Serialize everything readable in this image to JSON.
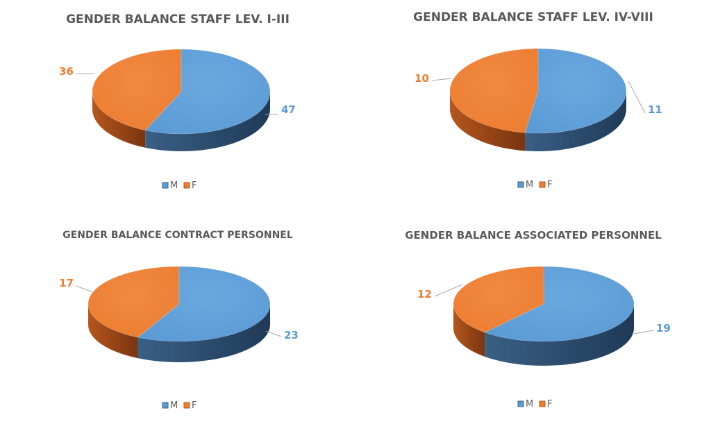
{
  "colors": {
    "m_top": "#5b9bd5",
    "m_side": "#3a5f85",
    "m_side_dark": "#1f3a57",
    "f_top": "#ed7d31",
    "f_side": "#b5561d",
    "f_side_dark": "#7a3510",
    "m_label": "#5b9bd5",
    "f_label": "#ed7d31",
    "leader": "#a6a6a6"
  },
  "legend": {
    "m": "M",
    "f": "F"
  },
  "chart_data": [
    {
      "type": "pie",
      "title": "GENDER BALANCE STAFF LEV. I-III",
      "categories": [
        "M",
        "F"
      ],
      "values": [
        47,
        36
      ],
      "legend_position": "bottom"
    },
    {
      "type": "pie",
      "title": "GENDER BALANCE STAFF LEV. IV-VIII",
      "categories": [
        "M",
        "F"
      ],
      "values": [
        11,
        10
      ],
      "legend_position": "bottom"
    },
    {
      "type": "pie",
      "title": "GENDER BALANCE CONTRACT PERSONNEL",
      "categories": [
        "M",
        "F"
      ],
      "values": [
        23,
        17
      ],
      "legend_position": "bottom"
    },
    {
      "type": "pie",
      "title": "GENDER BALANCE ASSOCIATED PERSONNEL",
      "categories": [
        "M",
        "F"
      ],
      "values": [
        19,
        12
      ],
      "legend_position": "bottom"
    }
  ]
}
